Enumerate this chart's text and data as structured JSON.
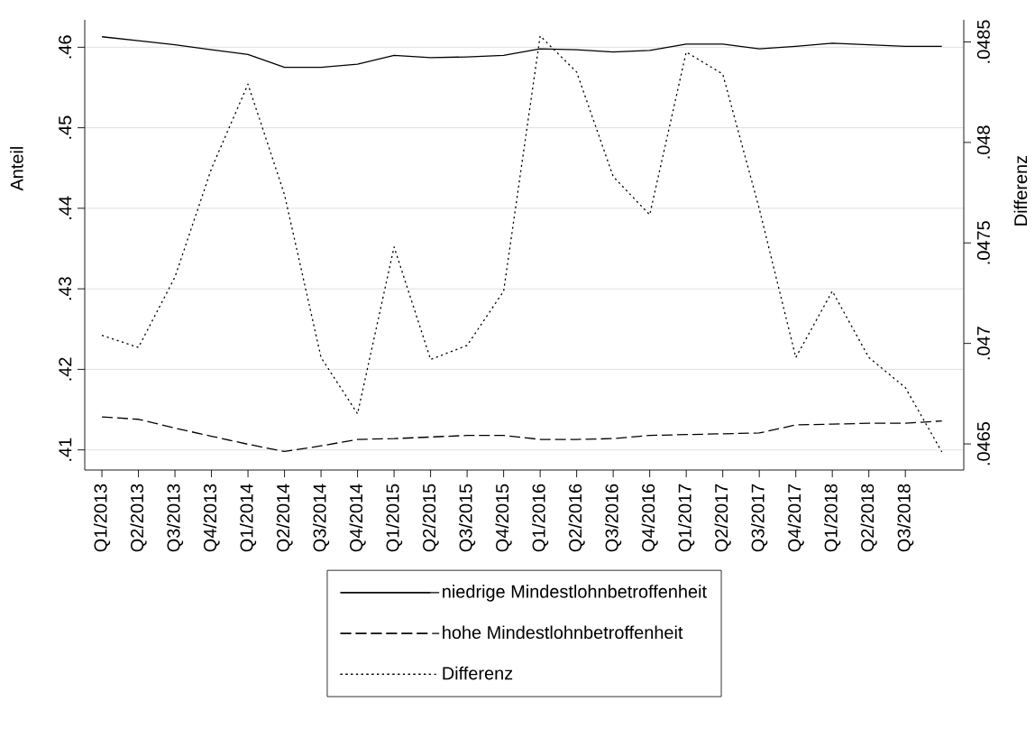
{
  "chart_data": {
    "type": "line",
    "ylabel": "Anteil",
    "y2label": "Differenz",
    "categories": [
      "Q1/2013",
      "Q2/2013",
      "Q3/2013",
      "Q4/2013",
      "Q1/2014",
      "Q2/2014",
      "Q3/2014",
      "Q4/2014",
      "Q1/2015",
      "Q2/2015",
      "Q3/2015",
      "Q4/2015",
      "Q1/2016",
      "Q2/2016",
      "Q3/2016",
      "Q4/2016",
      "Q1/2017",
      "Q2/2017",
      "Q3/2017",
      "Q4/2017",
      "Q1/2018",
      "Q2/2018",
      "Q3/2018",
      null
    ],
    "series": [
      {
        "name": "niedrige Mindestlohnbetroffenheit",
        "color": "#000000",
        "line_style": "solid",
        "values": [
          0.4613,
          0.4608,
          0.4603,
          0.4597,
          0.4591,
          0.4575,
          0.4575,
          0.4579,
          0.459,
          0.4587,
          0.4588,
          0.459,
          0.4598,
          0.4597,
          0.4594,
          0.4596,
          0.4604,
          0.4604,
          0.4598,
          0.4601,
          0.4605,
          0.4603,
          0.4601,
          0.4601
        ]
      },
      {
        "name": "hohe Mindestlohnbetroffenheit",
        "color": "#000000",
        "line_style": "dashed",
        "values": [
          0.4141,
          0.4138,
          0.4127,
          0.4117,
          0.4107,
          0.4098,
          0.4105,
          0.4113,
          0.4114,
          0.4116,
          0.4118,
          0.4118,
          0.4113,
          0.4113,
          0.4114,
          0.4118,
          0.4119,
          0.412,
          0.4121,
          0.4131,
          0.4132,
          0.4133,
          0.4133,
          0.4136
        ]
      },
      {
        "name": "Differenz",
        "color": "#000000",
        "line_style": "dotted",
        "axis": "y2",
        "values": [
          0.04704,
          0.04698,
          0.04733,
          0.04787,
          0.04829,
          0.04774,
          0.04693,
          0.04665,
          0.04748,
          0.04692,
          0.04699,
          0.04726,
          0.04853,
          0.04835,
          0.04783,
          0.04764,
          0.04845,
          0.04834,
          0.04767,
          0.04693,
          0.04726,
          0.04693,
          0.04678,
          0.04646
        ]
      }
    ],
    "ylim": [
      0.4075,
      0.4634
    ],
    "yticks": [
      {
        "value": 0.41,
        "label": ".41"
      },
      {
        "value": 0.42,
        "label": ".42"
      },
      {
        "value": 0.43,
        "label": ".43"
      },
      {
        "value": 0.44,
        "label": ".44"
      },
      {
        "value": 0.45,
        "label": ".45"
      },
      {
        "value": 0.46,
        "label": ".46"
      }
    ],
    "y2lim": [
      0.04637,
      0.04861
    ],
    "y2ticks": [
      {
        "value": 0.0465,
        "label": ".0465"
      },
      {
        "value": 0.047,
        "label": ".047"
      },
      {
        "value": 0.0475,
        "label": ".0475"
      },
      {
        "value": 0.048,
        "label": ".048"
      },
      {
        "value": 0.0485,
        "label": ".0485"
      }
    ],
    "grid": "y",
    "legend": "bottom"
  }
}
